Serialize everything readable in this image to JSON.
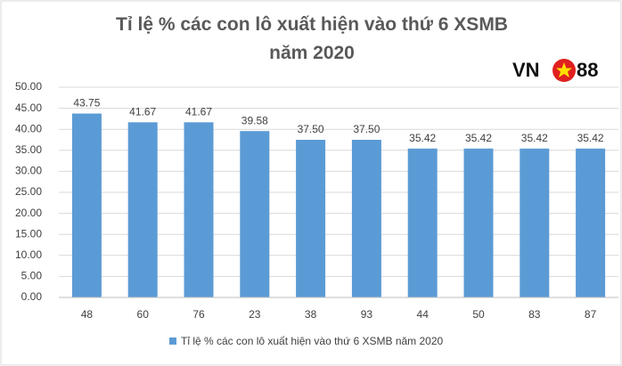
{
  "chart_data": {
    "type": "bar",
    "title": "Tỉ lệ % các con lô xuất hiện vào thứ 6 XSMB năm 2020",
    "logo": {
      "left": "VN",
      "right": "88"
    },
    "categories": [
      "48",
      "60",
      "76",
      "23",
      "38",
      "93",
      "44",
      "50",
      "83",
      "87"
    ],
    "series": [
      {
        "name": "Tỉ lệ % các con lô xuất hiện vào thứ 6 XSMB năm 2020",
        "color": "#5b9bd5",
        "values": [
          43.75,
          41.67,
          41.67,
          39.58,
          37.5,
          37.5,
          35.42,
          35.42,
          35.42,
          35.42
        ],
        "value_labels": [
          "43.75",
          "41.67",
          "41.67",
          "39.58",
          "37.50",
          "37.50",
          "35.42",
          "35.42",
          "35.42",
          "35.42"
        ]
      }
    ],
    "ylim": [
      0,
      50
    ],
    "yticks": [
      {
        "value": 0,
        "label": "0.00"
      },
      {
        "value": 5,
        "label": "5.00"
      },
      {
        "value": 10,
        "label": "10.00"
      },
      {
        "value": 15,
        "label": "15.00"
      },
      {
        "value": 20,
        "label": "20.00"
      },
      {
        "value": 25,
        "label": "25.00"
      },
      {
        "value": 30,
        "label": "30.00"
      },
      {
        "value": 35,
        "label": "35.00"
      },
      {
        "value": 40,
        "label": "40.00"
      },
      {
        "value": 45,
        "label": "45.00"
      },
      {
        "value": 50,
        "label": "50.00"
      }
    ],
    "grid": true,
    "legend": "bottom"
  }
}
